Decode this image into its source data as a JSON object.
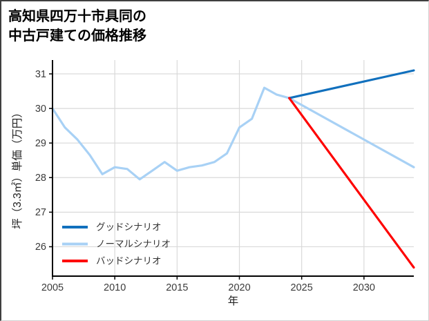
{
  "title": "高知県四万十市具同の\n中古戸建ての価格推移",
  "chart_data": {
    "type": "line",
    "title": "高知県四万十市具同の中古戸建ての価格推移",
    "xlabel": "年",
    "ylabel": "坪（3.3㎡）単価（万円）",
    "xlim": [
      2005,
      2034
    ],
    "ylim": [
      25.15,
      31.4
    ],
    "xticks": [
      2005,
      2010,
      2015,
      2020,
      2025,
      2030
    ],
    "yticks": [
      26,
      27,
      28,
      29,
      30,
      31
    ],
    "grid": true,
    "grid_color": "#d9d9d9",
    "spine_color": "#000000",
    "tick_label_color": "#3a3a3a",
    "legend_position": "lower-left",
    "legend_text_color": "#333333",
    "draw_order": [
      1,
      0,
      2
    ],
    "series": [
      {
        "name": "グッドシナリオ",
        "color": "#1170bd",
        "x": [
          2024,
          2034
        ],
        "y": [
          30.3,
          31.1
        ]
      },
      {
        "name": "ノーマルシナリオ",
        "color": "#a8d1f5",
        "x": [
          2005,
          2006,
          2007,
          2008,
          2009,
          2010,
          2011,
          2012,
          2013,
          2014,
          2015,
          2016,
          2017,
          2018,
          2019,
          2020,
          2021,
          2022,
          2023,
          2024,
          2034
        ],
        "y": [
          30.0,
          29.45,
          29.1,
          28.65,
          28.1,
          28.3,
          28.25,
          27.95,
          28.2,
          28.45,
          28.2,
          28.3,
          28.35,
          28.45,
          28.7,
          29.45,
          29.7,
          30.6,
          30.4,
          30.3,
          28.3
        ]
      },
      {
        "name": "バッドシナリオ",
        "color": "#fe0000",
        "x": [
          2024,
          2034
        ],
        "y": [
          30.3,
          25.4
        ]
      }
    ]
  }
}
